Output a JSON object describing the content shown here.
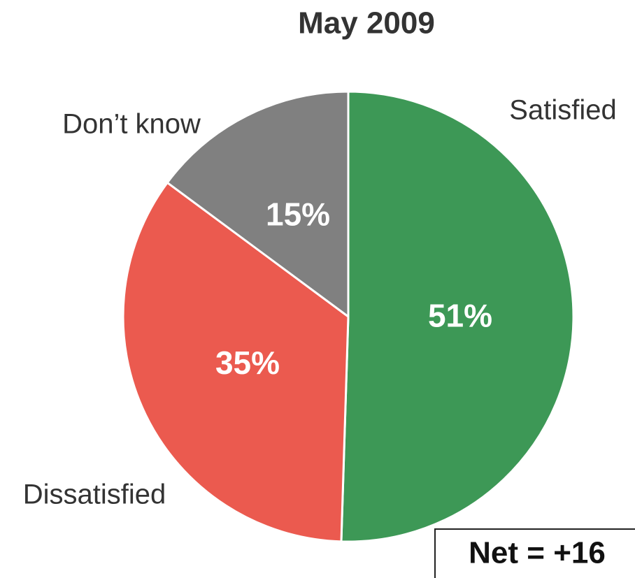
{
  "chart_data": {
    "type": "pie",
    "title": "May 2009",
    "categories": [
      "Satisfied",
      "Dissatisfied",
      "Don’t know"
    ],
    "values": [
      51,
      35,
      15
    ],
    "value_labels": [
      "51%",
      "35%",
      "15%"
    ],
    "colors": [
      "#3d9856",
      "#eb5a4f",
      "#808080"
    ],
    "annotation": "Net = +16"
  }
}
